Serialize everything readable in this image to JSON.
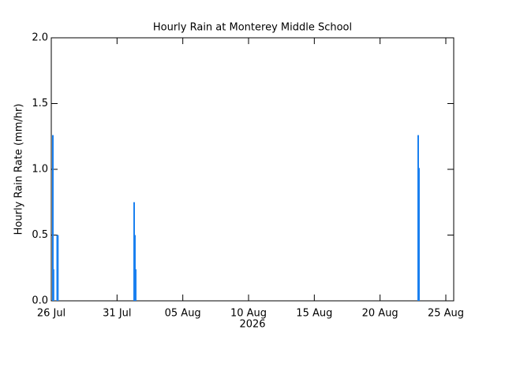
{
  "chart_data": {
    "type": "bar",
    "title": "Hourly Rain at Monterey Middle School",
    "y_label": "Hourly Rain Rate (mm/hr)",
    "x_label": "2026",
    "x": [
      0.12,
      0.17,
      0.45,
      0.5,
      6.3,
      6.36,
      6.42,
      27.9,
      27.96
    ],
    "values": [
      1.26,
      0.24,
      0.5,
      0.5,
      0.75,
      0.5,
      0.24,
      1.26,
      1.01
    ],
    "color": "#1a80f0",
    "xlim": [
      0,
      30.6
    ],
    "xticks": [
      {
        "value": 0,
        "label": "26 Jul"
      },
      {
        "value": 5,
        "label": "31 Jul"
      },
      {
        "value": 10,
        "label": "05 Aug"
      },
      {
        "value": 15,
        "label": "10 Aug"
      },
      {
        "value": 20,
        "label": "15 Aug"
      },
      {
        "value": 25,
        "label": "20 Aug"
      },
      {
        "value": 30,
        "label": "25 Aug"
      }
    ],
    "ylim": [
      0,
      2
    ],
    "yticks": [
      {
        "value": 0,
        "label": "0.0"
      },
      {
        "value": 0.5,
        "label": "0.5"
      },
      {
        "value": 1,
        "label": "1.0"
      },
      {
        "value": 1.5,
        "label": "1.5"
      },
      {
        "value": 2,
        "label": "2.0"
      }
    ],
    "grid": false
  }
}
